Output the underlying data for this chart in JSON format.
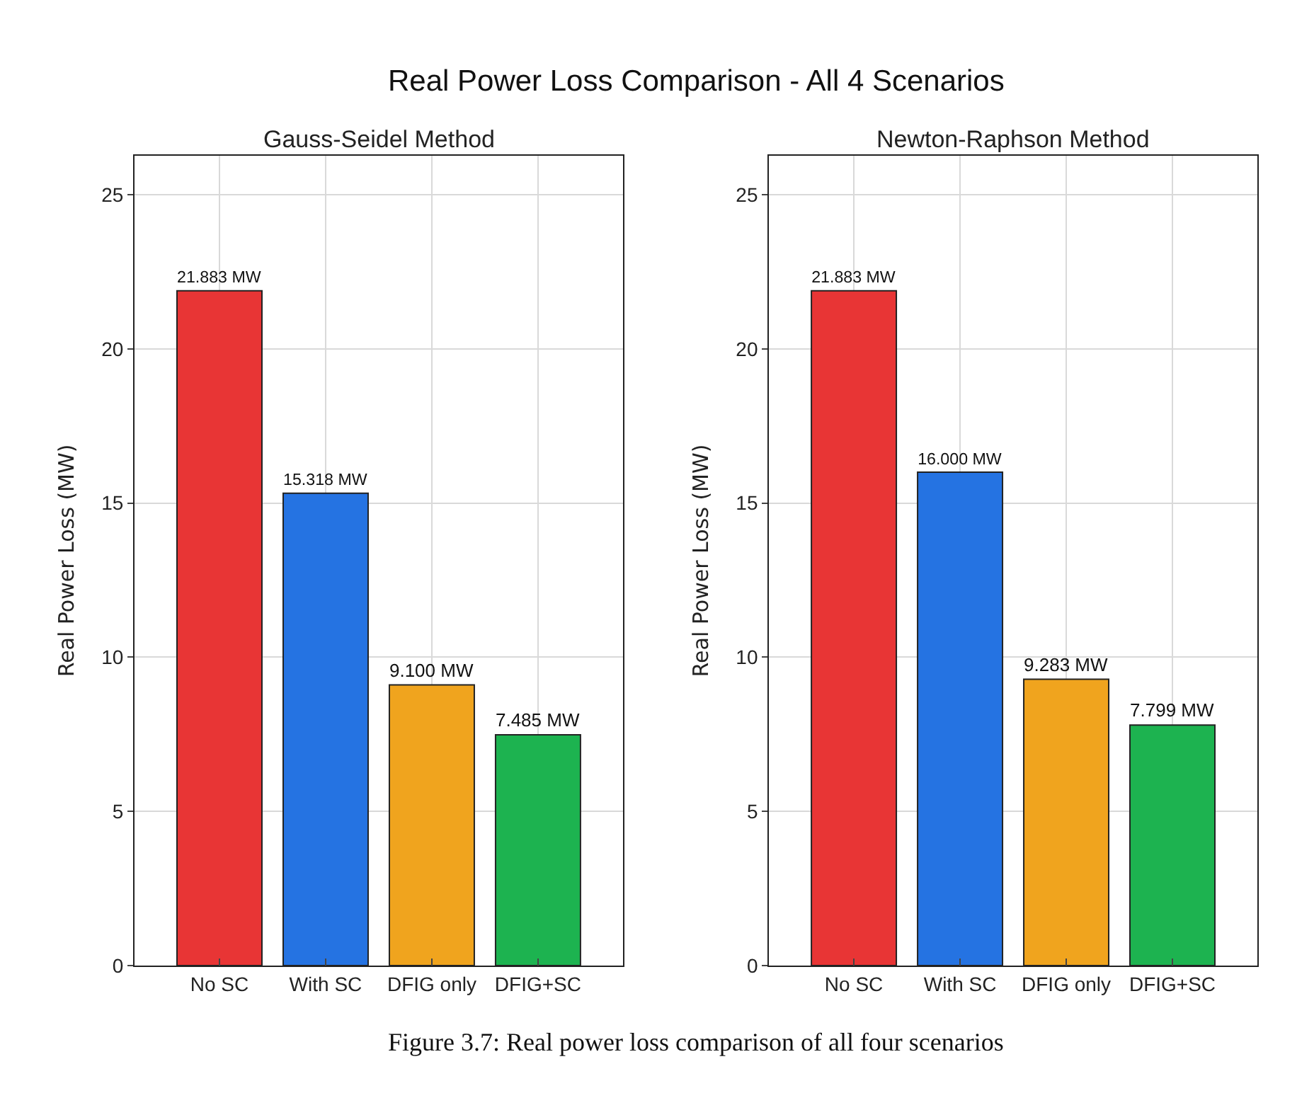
{
  "chart_data": [
    {
      "type": "bar",
      "title": "Gauss-Seidel Method",
      "ylabel": "Real Power Loss (MW)",
      "categories": [
        "No SC",
        "With SC",
        "DFIG only",
        "DFIG+SC"
      ],
      "values": [
        21.883,
        15.318,
        9.1,
        7.485
      ],
      "colors": [
        "#e83535",
        "#2573e2",
        "#f0a41e",
        "#1db350"
      ],
      "value_labels": [
        "21.883 MW",
        "15.318 MW",
        "9.100 MW",
        "7.485 MW"
      ],
      "ylim": [
        0,
        26.26
      ],
      "yticks": [
        0,
        5,
        10,
        15,
        20,
        25
      ],
      "grid": true
    },
    {
      "type": "bar",
      "title": "Newton-Raphson Method",
      "ylabel": "Real Power Loss (MW)",
      "categories": [
        "No SC",
        "With SC",
        "DFIG only",
        "DFIG+SC"
      ],
      "values": [
        21.883,
        16.0,
        9.283,
        7.799
      ],
      "colors": [
        "#e83535",
        "#2573e2",
        "#f0a41e",
        "#1db350"
      ],
      "value_labels": [
        "21.883 MW",
        "16.000 MW",
        "9.283 MW",
        "7.799 MW"
      ],
      "ylim": [
        0,
        26.26
      ],
      "yticks": [
        0,
        5,
        10,
        15,
        20,
        25
      ],
      "grid": true,
      "annotations": [
        "Real Power Loss Comparison - All 4 Scenarios",
        "Figure 3.7: Real power loss comparison of all four scenarios"
      ]
    }
  ]
}
